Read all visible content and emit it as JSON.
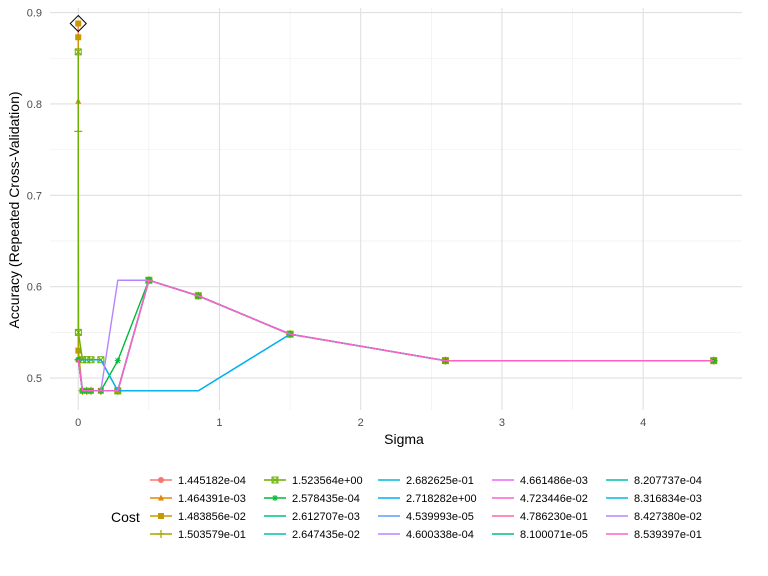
{
  "chart_data": {
    "type": "line",
    "xlabel": "Sigma",
    "ylabel": "Accuracy (Repeated Cross-Validation)",
    "xlim": [
      -0.2,
      4.7
    ],
    "ylim": [
      0.465,
      0.905
    ],
    "x_ticks": [
      0,
      1,
      2,
      3,
      4
    ],
    "y_ticks": [
      0.5,
      0.6,
      0.7,
      0.8,
      0.9
    ],
    "x_tick_labels": [
      "0",
      "1",
      "2",
      "3",
      "4"
    ],
    "y_tick_labels": [
      "0.5",
      "0.6",
      "0.7",
      "0.8",
      "0.9"
    ],
    "grid": true,
    "legend_title": "Cost",
    "legend_position": "bottom",
    "best_point": {
      "x": 0.0,
      "y": 0.888
    },
    "series": [
      {
        "name": "1.445182e-04",
        "color": "#F8766D",
        "marker": "circle",
        "points": [
          [
            0.0,
            0.888
          ],
          [
            0.001,
            0.52
          ],
          [
            0.03,
            0.486
          ],
          [
            0.06,
            0.486
          ],
          [
            0.09,
            0.486
          ],
          [
            0.16,
            0.486
          ],
          [
            0.28,
            0.486
          ],
          [
            0.5,
            0.607
          ],
          [
            0.85,
            0.59
          ],
          [
            1.5,
            0.548
          ],
          [
            2.6,
            0.519
          ],
          [
            4.5,
            0.519
          ]
        ]
      },
      {
        "name": "1.464391e-03",
        "color": "#E58700",
        "marker": "triangle",
        "points": [
          [
            0.0,
            0.803
          ],
          [
            0.001,
            0.52
          ],
          [
            0.03,
            0.486
          ],
          [
            0.06,
            0.486
          ],
          [
            0.09,
            0.486
          ],
          [
            0.16,
            0.486
          ],
          [
            0.28,
            0.486
          ],
          [
            0.5,
            0.607
          ],
          [
            0.85,
            0.59
          ],
          [
            1.5,
            0.548
          ],
          [
            2.6,
            0.519
          ],
          [
            4.5,
            0.519
          ]
        ]
      },
      {
        "name": "1.483856e-02",
        "color": "#C99800",
        "marker": "square",
        "points": [
          [
            0.0,
            0.873
          ],
          [
            0.001,
            0.53
          ],
          [
            0.03,
            0.486
          ],
          [
            0.06,
            0.486
          ],
          [
            0.09,
            0.486
          ],
          [
            0.16,
            0.486
          ],
          [
            0.28,
            0.486
          ],
          [
            0.5,
            0.607
          ],
          [
            0.85,
            0.59
          ],
          [
            1.5,
            0.548
          ],
          [
            2.6,
            0.519
          ],
          [
            4.5,
            0.519
          ]
        ]
      },
      {
        "name": "1.503579e-01",
        "color": "#A3A500",
        "marker": "plus",
        "points": [
          [
            0.0,
            0.77
          ],
          [
            0.001,
            0.52
          ],
          [
            0.03,
            0.486
          ],
          [
            0.06,
            0.486
          ],
          [
            0.09,
            0.486
          ],
          [
            0.16,
            0.486
          ],
          [
            0.28,
            0.486
          ],
          [
            0.5,
            0.607
          ],
          [
            0.85,
            0.59
          ],
          [
            1.5,
            0.548
          ],
          [
            2.6,
            0.519
          ],
          [
            4.5,
            0.519
          ]
        ]
      },
      {
        "name": "1.523564e+00",
        "color": "#6BB100",
        "marker": "square-x",
        "points": [
          [
            0.0,
            0.857
          ],
          [
            0.001,
            0.55
          ],
          [
            0.03,
            0.52
          ],
          [
            0.06,
            0.52
          ],
          [
            0.09,
            0.52
          ],
          [
            0.16,
            0.52
          ],
          [
            0.28,
            0.486
          ],
          [
            0.5,
            0.607
          ],
          [
            0.85,
            0.59
          ],
          [
            1.5,
            0.548
          ],
          [
            2.6,
            0.519
          ],
          [
            4.5,
            0.519
          ]
        ]
      },
      {
        "name": "2.578435e-04",
        "color": "#00BA38",
        "marker": "star",
        "points": [
          [
            0.0,
            0.52
          ],
          [
            0.03,
            0.486
          ],
          [
            0.06,
            0.486
          ],
          [
            0.09,
            0.486
          ],
          [
            0.16,
            0.486
          ],
          [
            0.28,
            0.519
          ],
          [
            0.5,
            0.607
          ],
          [
            0.85,
            0.59
          ],
          [
            1.5,
            0.548
          ],
          [
            2.6,
            0.519
          ],
          [
            4.5,
            0.519
          ]
        ]
      },
      {
        "name": "2.612707e-03",
        "color": "#00BF7D",
        "marker": "none",
        "points": [
          [
            0.0,
            0.52
          ],
          [
            0.03,
            0.486
          ],
          [
            0.06,
            0.486
          ],
          [
            0.09,
            0.486
          ],
          [
            0.16,
            0.486
          ],
          [
            0.28,
            0.486
          ],
          [
            0.5,
            0.607
          ],
          [
            0.85,
            0.59
          ],
          [
            1.5,
            0.548
          ],
          [
            2.6,
            0.519
          ],
          [
            4.5,
            0.519
          ]
        ]
      },
      {
        "name": "2.647435e-02",
        "color": "#00C0AF",
        "marker": "none",
        "points": [
          [
            0.0,
            0.52
          ],
          [
            0.03,
            0.486
          ],
          [
            0.06,
            0.486
          ],
          [
            0.09,
            0.486
          ],
          [
            0.16,
            0.486
          ],
          [
            0.28,
            0.486
          ],
          [
            0.5,
            0.607
          ],
          [
            0.85,
            0.59
          ],
          [
            1.5,
            0.548
          ],
          [
            2.6,
            0.519
          ],
          [
            4.5,
            0.519
          ]
        ]
      },
      {
        "name": "2.682625e-01",
        "color": "#00BCD8",
        "marker": "none",
        "points": [
          [
            0.0,
            0.52
          ],
          [
            0.03,
            0.486
          ],
          [
            0.06,
            0.486
          ],
          [
            0.09,
            0.486
          ],
          [
            0.16,
            0.486
          ],
          [
            0.28,
            0.486
          ],
          [
            0.5,
            0.486
          ],
          [
            0.85,
            0.486
          ],
          [
            1.5,
            0.548
          ],
          [
            2.6,
            0.519
          ],
          [
            4.5,
            0.519
          ]
        ]
      },
      {
        "name": "2.718282e+00",
        "color": "#00B0F6",
        "marker": "none",
        "points": [
          [
            0.0,
            0.52
          ],
          [
            0.03,
            0.52
          ],
          [
            0.06,
            0.52
          ],
          [
            0.09,
            0.52
          ],
          [
            0.16,
            0.52
          ],
          [
            0.28,
            0.486
          ],
          [
            0.5,
            0.486
          ],
          [
            0.85,
            0.486
          ],
          [
            1.5,
            0.548
          ],
          [
            2.6,
            0.519
          ],
          [
            4.5,
            0.519
          ]
        ]
      },
      {
        "name": "4.539993e-05",
        "color": "#619CFF",
        "marker": "none",
        "points": [
          [
            0.0,
            0.52
          ],
          [
            0.03,
            0.486
          ],
          [
            0.06,
            0.486
          ],
          [
            0.09,
            0.486
          ],
          [
            0.16,
            0.486
          ],
          [
            0.28,
            0.486
          ],
          [
            0.5,
            0.607
          ],
          [
            0.85,
            0.59
          ],
          [
            1.5,
            0.548
          ],
          [
            2.6,
            0.519
          ],
          [
            4.5,
            0.519
          ]
        ]
      },
      {
        "name": "4.600338e-04",
        "color": "#B983FF",
        "marker": "none",
        "points": [
          [
            0.0,
            0.52
          ],
          [
            0.03,
            0.486
          ],
          [
            0.06,
            0.486
          ],
          [
            0.09,
            0.486
          ],
          [
            0.16,
            0.486
          ],
          [
            0.28,
            0.607
          ],
          [
            0.5,
            0.607
          ],
          [
            0.85,
            0.59
          ],
          [
            1.5,
            0.548
          ],
          [
            2.6,
            0.519
          ],
          [
            4.5,
            0.519
          ]
        ]
      },
      {
        "name": "4.661486e-03",
        "color": "#E76BF3",
        "marker": "none",
        "points": [
          [
            0.0,
            0.52
          ],
          [
            0.03,
            0.486
          ],
          [
            0.06,
            0.486
          ],
          [
            0.09,
            0.486
          ],
          [
            0.16,
            0.486
          ],
          [
            0.28,
            0.486
          ],
          [
            0.5,
            0.607
          ],
          [
            0.85,
            0.59
          ],
          [
            1.5,
            0.548
          ],
          [
            2.6,
            0.519
          ],
          [
            4.5,
            0.519
          ]
        ]
      },
      {
        "name": "4.723446e-02",
        "color": "#FD61D1",
        "marker": "none",
        "points": [
          [
            0.0,
            0.52
          ],
          [
            0.03,
            0.486
          ],
          [
            0.06,
            0.486
          ],
          [
            0.09,
            0.486
          ],
          [
            0.16,
            0.486
          ],
          [
            0.28,
            0.486
          ],
          [
            0.5,
            0.607
          ],
          [
            0.85,
            0.59
          ],
          [
            1.5,
            0.548
          ],
          [
            2.6,
            0.519
          ],
          [
            4.5,
            0.519
          ]
        ]
      },
      {
        "name": "4.786230e-01",
        "color": "#FF67A4",
        "marker": "none",
        "points": [
          [
            0.0,
            0.52
          ],
          [
            0.03,
            0.486
          ],
          [
            0.06,
            0.486
          ],
          [
            0.09,
            0.486
          ],
          [
            0.16,
            0.486
          ],
          [
            0.28,
            0.486
          ],
          [
            0.5,
            0.607
          ],
          [
            0.85,
            0.59
          ],
          [
            1.5,
            0.548
          ],
          [
            2.6,
            0.519
          ],
          [
            4.5,
            0.519
          ]
        ]
      },
      {
        "name": "8.100071e-05",
        "color": "#00BF7D",
        "marker": "none",
        "points": [
          [
            0.0,
            0.52
          ],
          [
            0.03,
            0.486
          ],
          [
            0.06,
            0.486
          ],
          [
            0.09,
            0.486
          ],
          [
            0.16,
            0.486
          ],
          [
            0.28,
            0.486
          ],
          [
            0.5,
            0.607
          ],
          [
            0.85,
            0.59
          ],
          [
            1.5,
            0.548
          ],
          [
            2.6,
            0.519
          ],
          [
            4.5,
            0.519
          ]
        ]
      },
      {
        "name": "8.207737e-04",
        "color": "#00C0AF",
        "marker": "none",
        "points": [
          [
            0.0,
            0.52
          ],
          [
            0.03,
            0.486
          ],
          [
            0.06,
            0.486
          ],
          [
            0.09,
            0.486
          ],
          [
            0.16,
            0.486
          ],
          [
            0.28,
            0.486
          ],
          [
            0.5,
            0.607
          ],
          [
            0.85,
            0.59
          ],
          [
            1.5,
            0.548
          ],
          [
            2.6,
            0.519
          ],
          [
            4.5,
            0.519
          ]
        ]
      },
      {
        "name": "8.316834e-03",
        "color": "#00BCD8",
        "marker": "none",
        "points": [
          [
            0.0,
            0.52
          ],
          [
            0.03,
            0.486
          ],
          [
            0.06,
            0.486
          ],
          [
            0.09,
            0.486
          ],
          [
            0.16,
            0.486
          ],
          [
            0.28,
            0.486
          ],
          [
            0.5,
            0.607
          ],
          [
            0.85,
            0.59
          ],
          [
            1.5,
            0.548
          ],
          [
            2.6,
            0.519
          ],
          [
            4.5,
            0.519
          ]
        ]
      },
      {
        "name": "8.427380e-02",
        "color": "#B983FF",
        "marker": "none",
        "points": [
          [
            0.0,
            0.52
          ],
          [
            0.03,
            0.486
          ],
          [
            0.06,
            0.486
          ],
          [
            0.09,
            0.486
          ],
          [
            0.16,
            0.486
          ],
          [
            0.28,
            0.486
          ],
          [
            0.5,
            0.607
          ],
          [
            0.85,
            0.59
          ],
          [
            1.5,
            0.548
          ],
          [
            2.6,
            0.519
          ],
          [
            4.5,
            0.519
          ]
        ]
      },
      {
        "name": "8.539397e-01",
        "color": "#FF61C3",
        "marker": "none",
        "points": [
          [
            0.0,
            0.52
          ],
          [
            0.03,
            0.486
          ],
          [
            0.06,
            0.486
          ],
          [
            0.09,
            0.486
          ],
          [
            0.16,
            0.486
          ],
          [
            0.28,
            0.486
          ],
          [
            0.5,
            0.607
          ],
          [
            0.85,
            0.59
          ],
          [
            1.5,
            0.548
          ],
          [
            2.6,
            0.519
          ],
          [
            4.5,
            0.519
          ]
        ]
      }
    ],
    "legend_columns": [
      [
        "1.445182e-04",
        "1.464391e-03",
        "1.483856e-02",
        "1.503579e-01"
      ],
      [
        "1.523564e+00",
        "2.578435e-04",
        "2.612707e-03",
        "2.647435e-02"
      ],
      [
        "2.682625e-01",
        "2.718282e+00",
        "4.539993e-05",
        "4.600338e-04"
      ],
      [
        "4.661486e-03",
        "4.723446e-02",
        "4.786230e-01",
        "8.100071e-05"
      ],
      [
        "8.207737e-04",
        "8.316834e-03",
        "8.427380e-02",
        "8.539397e-01"
      ]
    ]
  }
}
